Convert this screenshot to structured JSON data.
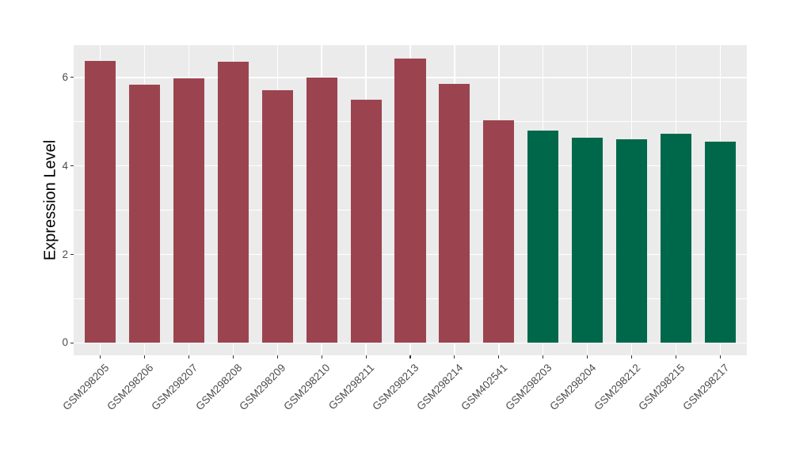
{
  "chart_data": {
    "type": "bar",
    "title": "",
    "xlabel": "",
    "ylabel": "Expression Level",
    "categories": [
      "GSM298205",
      "GSM298206",
      "GSM298207",
      "GSM298208",
      "GSM298209",
      "GSM298210",
      "GSM298211",
      "GSM298213",
      "GSM298214",
      "GSM402541",
      "GSM298203",
      "GSM298204",
      "GSM298212",
      "GSM298215",
      "GSM298217"
    ],
    "values": [
      6.38,
      5.83,
      5.98,
      6.35,
      5.71,
      6.0,
      5.49,
      6.43,
      5.86,
      5.04,
      4.79,
      4.63,
      4.61,
      4.72,
      4.54
    ],
    "groups": [
      "group1",
      "group1",
      "group1",
      "group1",
      "group1",
      "group1",
      "group1",
      "group1",
      "group1",
      "group1",
      "group2",
      "group2",
      "group2",
      "group2",
      "group2"
    ],
    "group_colors": {
      "group1": "#9B4450",
      "group2": "#00684A"
    },
    "y_ticks": [
      0,
      2,
      4,
      6
    ],
    "y_tick_labels": [
      "0",
      "2",
      "4",
      "6"
    ],
    "y_minor_ticks": [
      1,
      3,
      5
    ],
    "ylim": [
      -0.28,
      6.73
    ],
    "bar_width_frac": 0.7,
    "axis_expand_units": 0.6,
    "grid": true,
    "legend_position": "none",
    "panel_bg": "#EBEBEB",
    "grid_color": "#FFFFFF",
    "tick_color": "#333333",
    "tick_label_color": "#4D4D4D",
    "axis_title_color": "#000000",
    "figure_bg": "#FFFFFF"
  }
}
